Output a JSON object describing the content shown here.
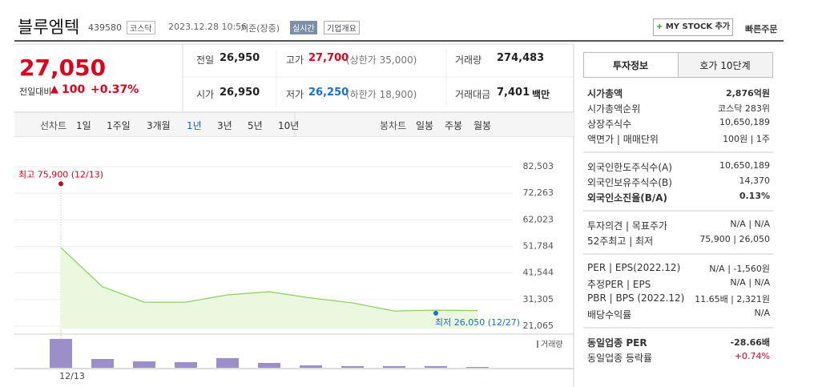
{
  "header": {
    "name": "블루엠텍",
    "code": "439580",
    "market": "코스닥",
    "time": "2023.12.28 10:56",
    "basis": "기준(장중)",
    "realtime": "실시간",
    "overview": "기업개요",
    "mystock": "MY STOCK 추가",
    "quick_order": "빠른주문"
  },
  "price": {
    "current": "27,050",
    "change_label": "전일대비",
    "change": "100",
    "change_rate": "+0.37%"
  },
  "summary": {
    "rows": [
      [
        {
          "label": "전일",
          "value": "26,950"
        },
        {
          "label": "고가",
          "value": "27,700",
          "note": "(상한가 35,000)"
        },
        {
          "label": "거래량",
          "value": "274,483"
        }
      ],
      [
        {
          "label": "시가",
          "value": "26,950"
        },
        {
          "label": "저가",
          "value": "26,250",
          "note": "(하한가 18,900)"
        },
        {
          "label": "거래대금",
          "value": "7,401",
          "note": "백만"
        }
      ]
    ]
  },
  "tabs": {
    "line_label": "선차트",
    "line": [
      "1일",
      "1주일",
      "3개월",
      "1년",
      "3년",
      "5년",
      "10년"
    ],
    "active": 3,
    "candle_label": "봉차트",
    "candle": [
      "일봉",
      "주봉",
      "월봉"
    ]
  },
  "chart_data": {
    "type": "line",
    "categories": [
      "12/13",
      null,
      null,
      null,
      null,
      null,
      null,
      null,
      null,
      null,
      null
    ],
    "values": [
      51300,
      36200,
      30300,
      30300,
      33100,
      34300,
      31900,
      30000,
      26900,
      27200,
      27050
    ],
    "color": "#8ccf5e",
    "ylim": [
      21065,
      82503
    ],
    "yticks": [
      {
        "value": 82503,
        "label": "82,503"
      },
      {
        "value": 72263,
        "label": "72,263"
      },
      {
        "value": 62023,
        "label": "62,023"
      },
      {
        "value": 51784,
        "label": "51,784"
      },
      {
        "value": 41544,
        "label": "41,544"
      },
      {
        "value": 31305,
        "label": "31,305"
      },
      {
        "value": 21065,
        "label": "21,065"
      }
    ],
    "grid": true,
    "annotations": [
      {
        "text": "최고 75,900 (12/13)",
        "value": 75900,
        "index": 0,
        "color": "#d0021b"
      },
      {
        "text": "최저 26,050 (12/27)",
        "value": 26050,
        "index": 9,
        "color": "#1a6fd0"
      }
    ],
    "volume": {
      "name": "거래량",
      "color": "#9b8ec9",
      "ylim": [
        0,
        40
      ],
      "values": [
        36,
        11,
        8,
        7,
        12,
        6,
        3,
        2,
        2,
        2,
        1
      ]
    }
  },
  "invest": {
    "tabs": [
      "투자정보",
      "호가 10단계"
    ],
    "groups": [
      [
        {
          "label": "시가총액",
          "value": "2,876억원",
          "bold": true
        },
        {
          "label": "시가총액순위",
          "value": "코스닥 283위"
        },
        {
          "label": "상장주식수",
          "value": "10,650,189"
        },
        {
          "label": "액면가 | 매매단위",
          "value": "100원 | 1주"
        }
      ],
      [
        {
          "label": "외국인한도주식수(A)",
          "value": "10,650,189"
        },
        {
          "label": "외국인보유주식수(B)",
          "value": "14,370"
        },
        {
          "label": "외국인소진율(B/A)",
          "value": "0.13%",
          "bold": true
        }
      ],
      [
        {
          "label": "투자의견 | 목표주가",
          "value": "N/A | N/A"
        },
        {
          "label": "52주최고 | 최저",
          "value": "75,900 | 26,050"
        }
      ],
      [
        {
          "label": "PER | EPS(2022.12)",
          "value": "N/A | -1,560원"
        },
        {
          "label": "추정PER | EPS",
          "value": "N/A | N/A"
        },
        {
          "label": "PBR | BPS (2022.12)",
          "value": "11.65배 | 2,321원"
        },
        {
          "label": "배당수익률",
          "value": "N/A"
        }
      ],
      [
        {
          "label": "동일업종 PER",
          "value": "-28.66배",
          "bold": true
        },
        {
          "label": "동일업종 등락률",
          "value": "+0.74%",
          "red": true
        }
      ]
    ]
  }
}
